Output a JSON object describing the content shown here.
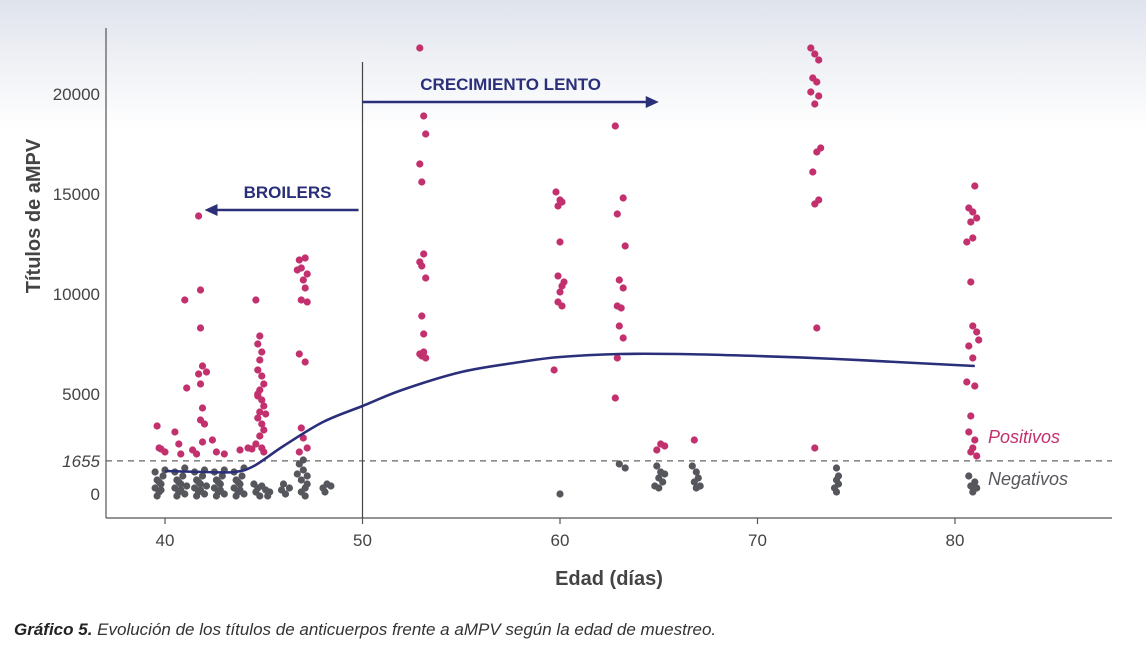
{
  "caption": {
    "lead": "Gráfico 5.",
    "text": " Evolución de los títulos de anticuerpos frente a aMPV según la edad de muestreo."
  },
  "chart_data": {
    "type": "scatter",
    "xlabel": "Edad (días)",
    "ylabel": "Títulos de aMPV",
    "xlim": [
      35,
      88
    ],
    "ylim": [
      -800,
      23200
    ],
    "xticks": [
      40,
      50,
      60,
      70,
      80
    ],
    "yticks": [
      0,
      5000,
      10000,
      15000,
      20000
    ],
    "threshold": {
      "value": 1655,
      "label": "1655"
    },
    "class_labels": {
      "positive": "Positivos",
      "negative": "Negativos"
    },
    "colors": {
      "positive": "#c2306e",
      "negative": "#55575c",
      "trend": "#2b2f7a",
      "annotation": "#2b2f7a"
    },
    "divider_x": 50,
    "annotations": [
      {
        "text": "BROILERS",
        "arrow_from": 49.8,
        "arrow_to": 42.0,
        "y": 14200
      },
      {
        "text": "CRECIMIENTO LENTO",
        "arrow_from": 50.0,
        "arrow_to": 65.0,
        "y": 19600
      }
    ],
    "trend": {
      "x": [
        40,
        42,
        43.5,
        44.5,
        46,
        48,
        50,
        52,
        55,
        58,
        60,
        63,
        66,
        70,
        74,
        78,
        81
      ],
      "y": [
        1150,
        1100,
        1100,
        1400,
        2400,
        3600,
        4400,
        5200,
        6100,
        6600,
        6850,
        7000,
        7000,
        6900,
        6750,
        6550,
        6400
      ]
    },
    "series": [
      {
        "name": "Positivos",
        "points": [
          [
            39.6,
            3400
          ],
          [
            39.7,
            2300
          ],
          [
            39.8,
            2250
          ],
          [
            40.0,
            2100
          ],
          [
            40.5,
            3100
          ],
          [
            40.7,
            2500
          ],
          [
            40.8,
            2000
          ],
          [
            41.0,
            9700
          ],
          [
            41.1,
            5300
          ],
          [
            41.4,
            2200
          ],
          [
            41.6,
            2000
          ],
          [
            41.7,
            13900
          ],
          [
            41.8,
            10200
          ],
          [
            41.8,
            8300
          ],
          [
            41.9,
            6400
          ],
          [
            41.7,
            6000
          ],
          [
            41.8,
            5500
          ],
          [
            42.1,
            6100
          ],
          [
            41.9,
            4300
          ],
          [
            41.8,
            3700
          ],
          [
            42.0,
            3500
          ],
          [
            41.9,
            2600
          ],
          [
            42.4,
            2700
          ],
          [
            42.6,
            2100
          ],
          [
            43.0,
            2000
          ],
          [
            43.8,
            2200
          ],
          [
            44.2,
            2300
          ],
          [
            44.4,
            2250
          ],
          [
            44.6,
            9700
          ],
          [
            44.8,
            7900
          ],
          [
            44.7,
            7500
          ],
          [
            44.9,
            7100
          ],
          [
            44.8,
            6700
          ],
          [
            44.7,
            6200
          ],
          [
            44.9,
            5900
          ],
          [
            45.0,
            5500
          ],
          [
            44.8,
            5200
          ],
          [
            44.7,
            4900
          ],
          [
            44.9,
            4700
          ],
          [
            45.0,
            4400
          ],
          [
            44.8,
            4100
          ],
          [
            44.7,
            3800
          ],
          [
            44.9,
            3500
          ],
          [
            45.0,
            3200
          ],
          [
            44.8,
            2900
          ],
          [
            44.6,
            2500
          ],
          [
            44.9,
            2300
          ],
          [
            45.0,
            2100
          ],
          [
            44.7,
            5000
          ],
          [
            45.1,
            4000
          ],
          [
            46.8,
            11700
          ],
          [
            47.1,
            11800
          ],
          [
            46.9,
            11300
          ],
          [
            47.2,
            11000
          ],
          [
            46.7,
            11200
          ],
          [
            47.0,
            10700
          ],
          [
            47.1,
            10300
          ],
          [
            46.9,
            9700
          ],
          [
            47.2,
            9600
          ],
          [
            46.8,
            7000
          ],
          [
            47.1,
            6600
          ],
          [
            46.9,
            3300
          ],
          [
            47.0,
            2800
          ],
          [
            47.2,
            2300
          ],
          [
            46.8,
            2100
          ],
          [
            52.9,
            22300
          ],
          [
            53.1,
            18900
          ],
          [
            53.2,
            18000
          ],
          [
            52.9,
            16500
          ],
          [
            53.0,
            15600
          ],
          [
            53.1,
            12000
          ],
          [
            52.9,
            11600
          ],
          [
            53.0,
            11400
          ],
          [
            53.2,
            10800
          ],
          [
            53.0,
            8900
          ],
          [
            53.1,
            8000
          ],
          [
            52.9,
            7000
          ],
          [
            53.2,
            6800
          ],
          [
            53.0,
            6900
          ],
          [
            53.1,
            7100
          ],
          [
            59.8,
            15100
          ],
          [
            60.0,
            14700
          ],
          [
            59.9,
            14400
          ],
          [
            60.1,
            14600
          ],
          [
            60.0,
            12600
          ],
          [
            59.9,
            10900
          ],
          [
            60.2,
            10600
          ],
          [
            60.1,
            10400
          ],
          [
            60.0,
            10100
          ],
          [
            59.9,
            9600
          ],
          [
            60.1,
            9400
          ],
          [
            59.7,
            6200
          ],
          [
            62.8,
            18400
          ],
          [
            63.2,
            14800
          ],
          [
            62.9,
            14000
          ],
          [
            63.3,
            12400
          ],
          [
            63.0,
            10700
          ],
          [
            63.2,
            10300
          ],
          [
            62.9,
            9400
          ],
          [
            63.1,
            9300
          ],
          [
            63.0,
            8400
          ],
          [
            63.2,
            7800
          ],
          [
            62.9,
            6800
          ],
          [
            62.8,
            4800
          ],
          [
            64.9,
            2200
          ],
          [
            65.1,
            2500
          ],
          [
            65.3,
            2400
          ],
          [
            66.8,
            2700
          ],
          [
            72.7,
            22300
          ],
          [
            72.9,
            22000
          ],
          [
            73.1,
            21700
          ],
          [
            72.8,
            20800
          ],
          [
            73.0,
            20600
          ],
          [
            72.7,
            20100
          ],
          [
            73.1,
            19900
          ],
          [
            72.9,
            19500
          ],
          [
            73.2,
            17300
          ],
          [
            73.0,
            17100
          ],
          [
            72.8,
            16100
          ],
          [
            73.1,
            14700
          ],
          [
            72.9,
            14500
          ],
          [
            73.0,
            8300
          ],
          [
            72.9,
            2300
          ],
          [
            81.0,
            15400
          ],
          [
            80.7,
            14300
          ],
          [
            80.9,
            14100
          ],
          [
            81.1,
            13800
          ],
          [
            80.8,
            13600
          ],
          [
            80.9,
            12800
          ],
          [
            80.6,
            12600
          ],
          [
            80.8,
            10600
          ],
          [
            80.9,
            8400
          ],
          [
            81.1,
            8100
          ],
          [
            81.2,
            7700
          ],
          [
            80.7,
            7400
          ],
          [
            80.9,
            6800
          ],
          [
            81.0,
            5400
          ],
          [
            80.6,
            5600
          ],
          [
            80.8,
            3900
          ],
          [
            80.7,
            3100
          ],
          [
            81.0,
            2700
          ],
          [
            80.9,
            2300
          ],
          [
            80.8,
            2100
          ],
          [
            81.1,
            1900
          ]
        ]
      },
      {
        "name": "Negativos",
        "points": [
          [
            39.5,
            1100
          ],
          [
            39.6,
            700
          ],
          [
            39.5,
            300
          ],
          [
            39.7,
            100
          ],
          [
            39.8,
            500
          ],
          [
            39.9,
            900
          ],
          [
            39.6,
            -100
          ],
          [
            40.0,
            1200
          ],
          [
            39.8,
            200
          ],
          [
            39.7,
            600
          ],
          [
            40.5,
            1100
          ],
          [
            40.6,
            700
          ],
          [
            40.5,
            300
          ],
          [
            40.7,
            100
          ],
          [
            40.8,
            500
          ],
          [
            40.9,
            900
          ],
          [
            40.6,
            -100
          ],
          [
            41.0,
            1300
          ],
          [
            40.8,
            200
          ],
          [
            40.7,
            600
          ],
          [
            41.0,
            0
          ],
          [
            41.1,
            400
          ],
          [
            41.5,
            1100
          ],
          [
            41.6,
            700
          ],
          [
            41.5,
            300
          ],
          [
            41.7,
            100
          ],
          [
            41.8,
            500
          ],
          [
            41.9,
            900
          ],
          [
            41.6,
            -100
          ],
          [
            42.0,
            1200
          ],
          [
            41.8,
            200
          ],
          [
            41.7,
            600
          ],
          [
            42.0,
            0
          ],
          [
            42.1,
            400
          ],
          [
            42.5,
            1100
          ],
          [
            42.6,
            700
          ],
          [
            42.5,
            300
          ],
          [
            42.7,
            100
          ],
          [
            42.8,
            500
          ],
          [
            42.9,
            900
          ],
          [
            42.6,
            -100
          ],
          [
            43.0,
            1200
          ],
          [
            42.8,
            200
          ],
          [
            42.7,
            600
          ],
          [
            43.0,
            0
          ],
          [
            43.5,
            1100
          ],
          [
            43.6,
            700
          ],
          [
            43.5,
            300
          ],
          [
            43.7,
            100
          ],
          [
            43.8,
            500
          ],
          [
            43.9,
            900
          ],
          [
            43.6,
            -100
          ],
          [
            44.0,
            1300
          ],
          [
            43.8,
            200
          ],
          [
            43.7,
            600
          ],
          [
            44.0,
            0
          ],
          [
            44.5,
            500
          ],
          [
            44.6,
            100
          ],
          [
            44.7,
            300
          ],
          [
            44.8,
            -100
          ],
          [
            44.9,
            400
          ],
          [
            45.1,
            200
          ],
          [
            45.3,
            100
          ],
          [
            45.2,
            -100
          ],
          [
            45.9,
            200
          ],
          [
            46.1,
            0
          ],
          [
            46.3,
            300
          ],
          [
            46.0,
            500
          ],
          [
            46.7,
            1000
          ],
          [
            46.8,
            1500
          ],
          [
            46.9,
            700
          ],
          [
            47.0,
            1200
          ],
          [
            47.1,
            300
          ],
          [
            47.2,
            900
          ],
          [
            47.0,
            1700
          ],
          [
            46.9,
            100
          ],
          [
            47.2,
            500
          ],
          [
            47.1,
            -100
          ],
          [
            48.0,
            300
          ],
          [
            48.2,
            500
          ],
          [
            48.4,
            400
          ],
          [
            48.1,
            100
          ],
          [
            60.0,
            0
          ],
          [
            63.0,
            1500
          ],
          [
            63.3,
            1300
          ],
          [
            64.9,
            1400
          ],
          [
            65.1,
            1100
          ],
          [
            65.0,
            800
          ],
          [
            65.2,
            600
          ],
          [
            64.8,
            400
          ],
          [
            65.0,
            300
          ],
          [
            65.3,
            1000
          ],
          [
            66.7,
            1400
          ],
          [
            66.9,
            1100
          ],
          [
            67.0,
            800
          ],
          [
            66.8,
            600
          ],
          [
            67.1,
            400
          ],
          [
            66.9,
            300
          ],
          [
            74.0,
            700
          ],
          [
            74.1,
            500
          ],
          [
            73.9,
            300
          ],
          [
            74.0,
            100
          ],
          [
            74.1,
            900
          ],
          [
            74.0,
            1300
          ],
          [
            80.7,
            900
          ],
          [
            81.0,
            600
          ],
          [
            80.8,
            400
          ],
          [
            81.1,
            300
          ],
          [
            80.9,
            100
          ]
        ]
      }
    ]
  }
}
